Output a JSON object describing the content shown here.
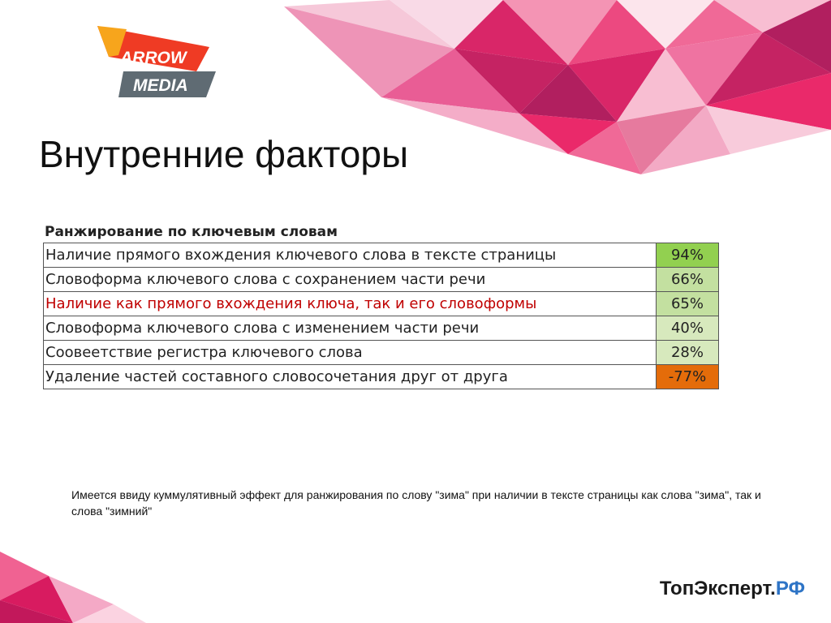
{
  "colors": {
    "accent": "#2e74c6",
    "highlight_text": "#c00000",
    "value_green_strong": "#92d050",
    "value_green_light": "#d7e9bd",
    "value_orange": "#e46c0a"
  },
  "logo": {
    "line1": "ARROW",
    "line2": "MEDIA"
  },
  "title": "Внутренние факторы",
  "table": {
    "heading": "Ранжирование по ключевым словам",
    "rows": [
      {
        "label": "Наличие прямого вхождения ключевого слова в тексте страницы",
        "value": "94%"
      },
      {
        "label": "Словоформа ключевого слова с сохранением части речи",
        "value": "66%"
      },
      {
        "label": "Наличие как прямого вхождения ключа, так и его словоформы",
        "value": "65%"
      },
      {
        "label": "Словоформа ключевого слова с изменением части речи",
        "value": "40%"
      },
      {
        "label": "Соовеетствие регистра ключевого слова",
        "value": "28%"
      },
      {
        "label": "Удаление частей составного словосочетания друг от друга",
        "value": "-77%"
      }
    ]
  },
  "note": "Имеется ввиду куммулятивный эффект для ранжирования по слову \"зима\" при наличии в тексте страницы как слова \"зима\", так и слова \"зимний\"",
  "brand": {
    "main": "ТопЭксперт.",
    "accent": "РФ"
  }
}
